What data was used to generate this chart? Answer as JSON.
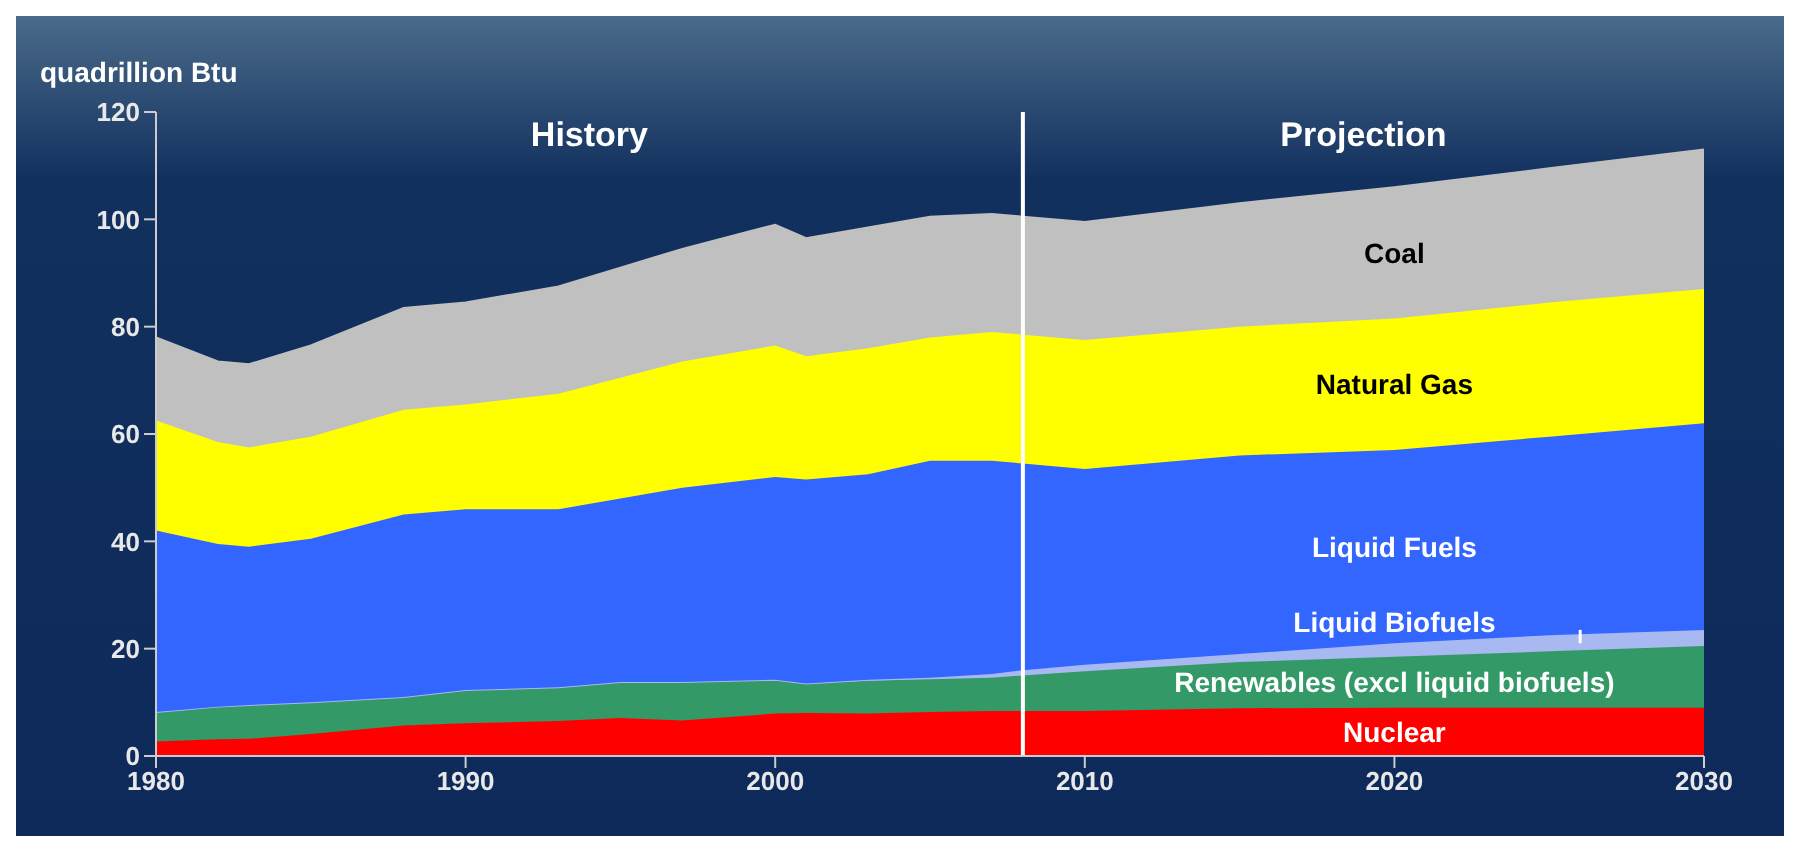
{
  "chart_data": {
    "type": "area",
    "stacked": true,
    "ylabel": "quadrillion Btu",
    "x": [
      1980,
      1982,
      1983,
      1985,
      1988,
      1990,
      1993,
      1995,
      1997,
      2000,
      2001,
      2003,
      2005,
      2007,
      2008,
      2010,
      2015,
      2020,
      2025,
      2030
    ],
    "series": [
      {
        "name": "Nuclear",
        "color": "#ff0000",
        "values": [
          2.7,
          3.1,
          3.2,
          4.1,
          5.7,
          6.1,
          6.5,
          7.1,
          6.6,
          7.9,
          8.0,
          7.9,
          8.2,
          8.4,
          8.4,
          8.4,
          8.9,
          9.0,
          9.0,
          9.0
        ]
      },
      {
        "name": "Renewables (excl liquid biofuels)",
        "color": "#339966",
        "values": [
          5.5,
          6.1,
          6.3,
          5.9,
          5.3,
          6.2,
          6.3,
          6.7,
          7.2,
          6.3,
          5.5,
          6.1,
          6.1,
          6.2,
          6.6,
          7.4,
          8.6,
          9.5,
          10.5,
          11.5
        ]
      },
      {
        "name": "Liquid Biofuels",
        "color": "#a8b8f0",
        "values": [
          0,
          0,
          0,
          0,
          0,
          0,
          0,
          0,
          0,
          0,
          0,
          0.2,
          0.3,
          0.7,
          1.0,
          1.2,
          1.5,
          2.5,
          3.0,
          3.0
        ]
      },
      {
        "name": "Liquid Fuels",
        "color": "#3366ff",
        "values": [
          33.8,
          30.3,
          29.5,
          30.5,
          34,
          33.7,
          33.2,
          34.2,
          36.2,
          37.8,
          38,
          38.3,
          40.4,
          39.7,
          38.5,
          36.5,
          37,
          36,
          37,
          38.5
        ]
      },
      {
        "name": "Natural Gas",
        "color": "#ffff00",
        "values": [
          20.5,
          19,
          18.5,
          19,
          19.5,
          19.5,
          21.5,
          22.5,
          23.5,
          24.5,
          23,
          23.5,
          23,
          24,
          24,
          24,
          24,
          24.5,
          25,
          25
        ]
      },
      {
        "name": "Coal",
        "color": "#c0c0c0",
        "values": [
          15.5,
          15,
          15.5,
          17,
          19,
          19,
          20,
          20.5,
          21,
          22.5,
          22,
          22.5,
          22.5,
          22,
          22,
          22,
          23,
          24.5,
          25,
          26
        ]
      }
    ],
    "xlim": [
      1980,
      2030
    ],
    "xticks": [
      1980,
      1990,
      2000,
      2010,
      2020,
      2030
    ],
    "ylim": [
      0,
      120
    ],
    "yticks": [
      0,
      20,
      40,
      60,
      80,
      100,
      120
    ],
    "ref_lines": [
      {
        "axis": "x",
        "value": 2008,
        "color": "#ffffff"
      }
    ],
    "annotations": [
      "History",
      "Projection"
    ]
  }
}
